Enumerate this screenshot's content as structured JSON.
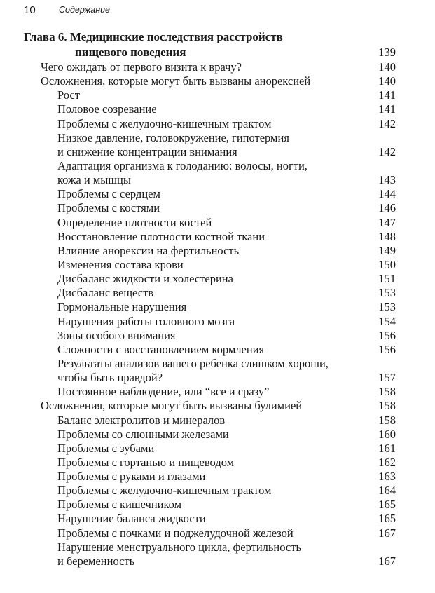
{
  "header": {
    "page_number": "10",
    "section": "Содержание"
  },
  "chapter": {
    "title_lines": [
      "Глава 6. Медицинские последствия расстройств",
      "пищевого поведения"
    ],
    "page": "139",
    "entries": [
      {
        "lines": [
          "Чего ожидать от первого визита к врачу?"
        ],
        "page": "140"
      },
      {
        "lines": [
          "Осложнения, которые могут быть вызваны анорексией"
        ],
        "page": "140",
        "items": [
          {
            "lines": [
              "Рост"
            ],
            "page": "141"
          },
          {
            "lines": [
              "Половое созревание"
            ],
            "page": "141"
          },
          {
            "lines": [
              "Проблемы с желудочно-кишечным трактом"
            ],
            "page": "142"
          },
          {
            "lines": [
              "Низкое давление, головокружение, гипотермия",
              "и снижение концентрации внимания"
            ],
            "page": "142"
          },
          {
            "lines": [
              "Адаптация организма к голоданию: волосы, ногти,",
              "кожа и мышцы"
            ],
            "page": "143"
          },
          {
            "lines": [
              "Проблемы с сердцем"
            ],
            "page": "144"
          },
          {
            "lines": [
              "Проблемы с костями"
            ],
            "page": "146"
          },
          {
            "lines": [
              "Определение плотности костей"
            ],
            "page": "147"
          },
          {
            "lines": [
              "Восстановление плотности костной ткани"
            ],
            "page": "148"
          },
          {
            "lines": [
              "Влияние анорексии на фертильность"
            ],
            "page": "149"
          },
          {
            "lines": [
              "Изменения состава крови"
            ],
            "page": "150"
          },
          {
            "lines": [
              "Дисбаланс жидкости и холестерина"
            ],
            "page": "151"
          },
          {
            "lines": [
              "Дисбаланс веществ"
            ],
            "page": "153"
          },
          {
            "lines": [
              "Гормональные нарушения"
            ],
            "page": "153"
          },
          {
            "lines": [
              "Нарушения работы головного мозга"
            ],
            "page": "154"
          },
          {
            "lines": [
              "Зоны особого внимания"
            ],
            "page": "156"
          },
          {
            "lines": [
              "Сложности с восстановлением кормления"
            ],
            "page": "156"
          },
          {
            "lines": [
              "Результаты анализов вашего ребенка слишком хороши,",
              "чтобы быть правдой?"
            ],
            "page": "157"
          },
          {
            "lines": [
              "Постоянное наблюдение, или “все и сразу”"
            ],
            "page": "158"
          }
        ]
      },
      {
        "lines": [
          "Осложнения, которые могут быть вызваны булимией"
        ],
        "page": "158",
        "items": [
          {
            "lines": [
              "Баланс электролитов и минералов"
            ],
            "page": "158"
          },
          {
            "lines": [
              "Проблемы со слюнными железами"
            ],
            "page": "160"
          },
          {
            "lines": [
              "Проблемы с зубами"
            ],
            "page": "161"
          },
          {
            "lines": [
              "Проблемы с гортанью и пищеводом"
            ],
            "page": "162"
          },
          {
            "lines": [
              "Проблемы с руками и глазами"
            ],
            "page": "163"
          },
          {
            "lines": [
              "Проблемы с желудочно-кишечным трактом"
            ],
            "page": "164"
          },
          {
            "lines": [
              "Проблемы с кишечником"
            ],
            "page": "165"
          },
          {
            "lines": [
              "Нарушение баланса жидкости"
            ],
            "page": "165"
          },
          {
            "lines": [
              "Проблемы с почками и поджелудочной железой"
            ],
            "page": "167"
          },
          {
            "lines": [
              "Нарушение менструального цикла, фертильность",
              "и беременность"
            ],
            "page": "167"
          }
        ]
      }
    ]
  }
}
